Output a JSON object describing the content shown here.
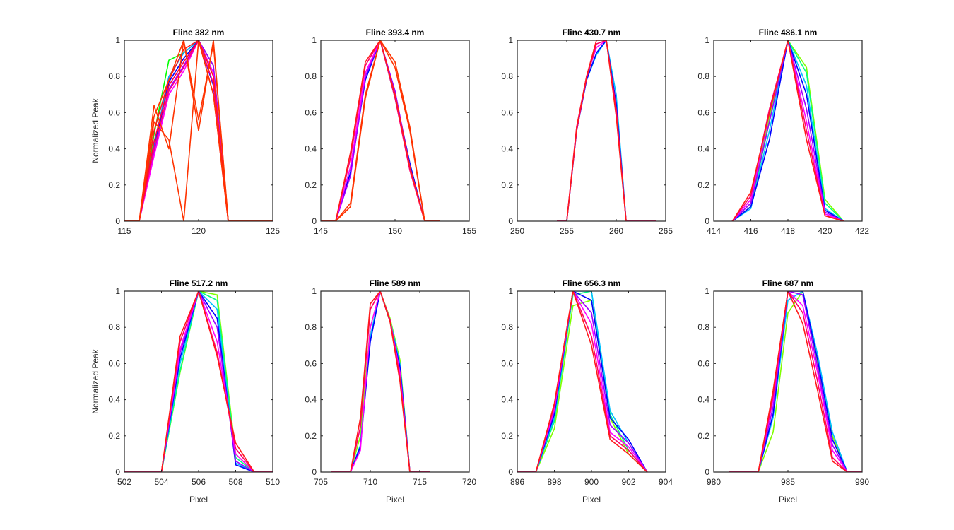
{
  "chart_data": [
    {
      "type": "line",
      "title": "Fline 382 nm",
      "xlabel": "",
      "ylabel": "Normalized Peak",
      "xlim": [
        115,
        125
      ],
      "ylim": [
        0,
        1
      ],
      "xticks": [
        115,
        120,
        125
      ],
      "yticks": [
        0,
        0.2,
        0.4,
        0.6,
        0.8,
        1
      ],
      "x": [
        115,
        116,
        117,
        118,
        119,
        120,
        121,
        122,
        123,
        124,
        125
      ],
      "series": [
        {
          "color": "#00ff00",
          "values": [
            0,
            0,
            0.48,
            0.89,
            0.93,
            1.0,
            0.86,
            0,
            0,
            0,
            0
          ]
        },
        {
          "color": "#00a0ff",
          "values": [
            0,
            0,
            0.42,
            0.8,
            0.93,
            1.0,
            0.82,
            0,
            0,
            0,
            0
          ]
        },
        {
          "color": "#0000ff",
          "values": [
            0,
            0,
            0.4,
            0.77,
            0.9,
            1.0,
            0.75,
            0,
            0,
            0,
            0
          ]
        },
        {
          "color": "#a000ff",
          "values": [
            0,
            0,
            0.38,
            0.73,
            0.86,
            1.0,
            0.86,
            0,
            0,
            0,
            0
          ]
        },
        {
          "color": "#ff00ff",
          "values": [
            0,
            0,
            0.36,
            0.7,
            0.83,
            1.0,
            0.82,
            0,
            0,
            0,
            0
          ]
        },
        {
          "color": "#ff0080",
          "values": [
            0,
            0,
            0.4,
            0.72,
            0.85,
            1.0,
            0.76,
            0,
            0,
            0,
            0
          ]
        },
        {
          "color": "#ff0040",
          "values": [
            0,
            0,
            0.44,
            0.75,
            0.88,
            1.0,
            0.7,
            0,
            0,
            0,
            0
          ]
        },
        {
          "color": "#ff1a1a",
          "values": [
            0,
            0,
            0.5,
            0.78,
            0.95,
            1.0,
            0.8,
            0,
            0,
            0,
            0
          ]
        },
        {
          "color": "#ff3300",
          "values": [
            0,
            0,
            0.64,
            0.4,
            1.0,
            0.5,
            1.0,
            0,
            0,
            0,
            0
          ]
        },
        {
          "color": "#ff3300",
          "values": [
            0,
            0,
            0.55,
            0.45,
            0.0,
            1.0,
            0.7,
            0,
            0,
            0,
            0
          ]
        },
        {
          "color": "#ff3300",
          "values": [
            0,
            0,
            0.58,
            0.78,
            1.0,
            0.56,
            0.98,
            0,
            0,
            0,
            0
          ]
        }
      ]
    },
    {
      "type": "line",
      "title": "Fline 393.4 nm",
      "xlabel": "",
      "ylabel": "",
      "xlim": [
        145,
        155
      ],
      "ylim": [
        0,
        1
      ],
      "xticks": [
        145,
        150,
        155
      ],
      "yticks": [
        0,
        0.2,
        0.4,
        0.6,
        0.8,
        1
      ],
      "x": [
        145,
        146,
        147,
        148,
        149,
        150,
        151,
        152,
        153
      ],
      "series": [
        {
          "color": "#00c0ff",
          "values": [
            0,
            0,
            0.3,
            0.8,
            1.0,
            0.68,
            0.3,
            0,
            0
          ]
        },
        {
          "color": "#0000ff",
          "values": [
            0,
            0,
            0.27,
            0.78,
            1.0,
            0.7,
            0.32,
            0,
            0
          ]
        },
        {
          "color": "#a000ff",
          "values": [
            0,
            0,
            0.25,
            0.8,
            1.0,
            0.72,
            0.3,
            0,
            0
          ]
        },
        {
          "color": "#ff00ff",
          "values": [
            0,
            0,
            0.3,
            0.82,
            1.0,
            0.7,
            0.3,
            0,
            0
          ]
        },
        {
          "color": "#ff0066",
          "values": [
            0,
            0,
            0.35,
            0.86,
            1.0,
            0.68,
            0.28,
            0,
            0
          ]
        },
        {
          "color": "#ff1a1a",
          "values": [
            0,
            0,
            0.38,
            0.88,
            1.0,
            0.7,
            0.3,
            0,
            0
          ]
        },
        {
          "color": "#ff3300",
          "values": [
            0,
            0,
            0.1,
            0.7,
            1.0,
            0.88,
            0.52,
            0,
            0
          ]
        },
        {
          "color": "#ff3300",
          "values": [
            0,
            0,
            0.08,
            0.68,
            1.0,
            0.85,
            0.5,
            0,
            0
          ]
        }
      ]
    },
    {
      "type": "line",
      "title": "Fline 430.7 nm",
      "xlabel": "",
      "ylabel": "",
      "xlim": [
        250,
        265
      ],
      "ylim": [
        0,
        1
      ],
      "xticks": [
        250,
        255,
        260,
        265
      ],
      "yticks": [
        0,
        0.2,
        0.4,
        0.6,
        0.8,
        1
      ],
      "x": [
        254,
        255,
        256,
        257,
        258,
        259,
        260,
        261,
        262,
        263,
        264
      ],
      "series": [
        {
          "color": "#00c0ff",
          "values": [
            0,
            0,
            0.5,
            0.78,
            0.92,
            1.0,
            0.7,
            0,
            0,
            0,
            0
          ]
        },
        {
          "color": "#0000ff",
          "values": [
            0,
            0,
            0.5,
            0.78,
            0.93,
            1.0,
            0.65,
            0,
            0,
            0,
            0
          ]
        },
        {
          "color": "#ff00ff",
          "values": [
            0,
            0,
            0.52,
            0.8,
            0.96,
            1.0,
            0.6,
            0,
            0,
            0,
            0
          ]
        },
        {
          "color": "#ff0066",
          "values": [
            0,
            0,
            0.5,
            0.79,
            0.98,
            1.0,
            0.62,
            0,
            0,
            0,
            0
          ]
        },
        {
          "color": "#ff1a1a",
          "values": [
            0,
            0,
            0.52,
            0.8,
            1.0,
            1.0,
            0.58,
            0,
            0,
            0,
            0
          ]
        }
      ]
    },
    {
      "type": "line",
      "title": "Fline 486.1 nm",
      "xlabel": "",
      "ylabel": "",
      "xlim": [
        414,
        422
      ],
      "ylim": [
        0,
        1
      ],
      "xticks": [
        414,
        416,
        418,
        420,
        422
      ],
      "yticks": [
        0,
        0.2,
        0.4,
        0.6,
        0.8,
        1
      ],
      "x": [
        415,
        416,
        417,
        418,
        419,
        420,
        421
      ],
      "series": [
        {
          "color": "#80ff00",
          "values": [
            0,
            0.1,
            0.58,
            1.0,
            0.85,
            0.12,
            0
          ]
        },
        {
          "color": "#00ff80",
          "values": [
            0,
            0.08,
            0.55,
            1.0,
            0.82,
            0.1,
            0
          ]
        },
        {
          "color": "#00c0ff",
          "values": [
            0,
            0.07,
            0.5,
            1.0,
            0.75,
            0.07,
            0
          ]
        },
        {
          "color": "#0000ff",
          "values": [
            0,
            0.08,
            0.45,
            1.0,
            0.7,
            0.06,
            0
          ]
        },
        {
          "color": "#a000ff",
          "values": [
            0,
            0.1,
            0.55,
            1.0,
            0.62,
            0.05,
            0
          ]
        },
        {
          "color": "#ff00ff",
          "values": [
            0,
            0.12,
            0.6,
            1.0,
            0.55,
            0.04,
            0
          ]
        },
        {
          "color": "#ff0066",
          "values": [
            0,
            0.14,
            0.62,
            1.0,
            0.5,
            0.03,
            0
          ]
        },
        {
          "color": "#ff1a1a",
          "values": [
            0,
            0.16,
            0.6,
            1.0,
            0.45,
            0.03,
            0
          ]
        }
      ]
    },
    {
      "type": "line",
      "title": "Fline 517.2 nm",
      "xlabel": "Pixel",
      "ylabel": "Normalized Peak",
      "xlim": [
        502,
        510
      ],
      "ylim": [
        0,
        1
      ],
      "xticks": [
        502,
        504,
        506,
        508,
        510
      ],
      "yticks": [
        0,
        0.2,
        0.4,
        0.6,
        0.8,
        1
      ],
      "x": [
        502,
        503,
        504,
        505,
        506,
        507,
        508,
        509,
        510
      ],
      "series": [
        {
          "color": "#80ff00",
          "values": [
            0,
            0,
            0,
            0.55,
            1.0,
            0.98,
            0.1,
            0,
            0
          ]
        },
        {
          "color": "#00ff80",
          "values": [
            0,
            0,
            0,
            0.56,
            1.0,
            0.95,
            0.08,
            0,
            0
          ]
        },
        {
          "color": "#00c0ff",
          "values": [
            0,
            0,
            0,
            0.6,
            1.0,
            0.9,
            0.05,
            0,
            0
          ]
        },
        {
          "color": "#0000ff",
          "values": [
            0,
            0,
            0,
            0.63,
            1.0,
            0.85,
            0.04,
            0,
            0
          ]
        },
        {
          "color": "#a000ff",
          "values": [
            0,
            0,
            0,
            0.66,
            1.0,
            0.8,
            0.06,
            0,
            0
          ]
        },
        {
          "color": "#ff00ff",
          "values": [
            0,
            0,
            0,
            0.68,
            1.0,
            0.72,
            0.1,
            0,
            0
          ]
        },
        {
          "color": "#ff0066",
          "values": [
            0,
            0,
            0,
            0.72,
            1.0,
            0.66,
            0.13,
            0,
            0
          ]
        },
        {
          "color": "#ff1a1a",
          "values": [
            0,
            0,
            0,
            0.75,
            1.0,
            0.64,
            0.16,
            0,
            0
          ]
        }
      ]
    },
    {
      "type": "line",
      "title": "Fline 589 nm",
      "xlabel": "Pixel",
      "ylabel": "",
      "xlim": [
        705,
        720
      ],
      "ylim": [
        0,
        1
      ],
      "xticks": [
        705,
        710,
        715,
        720
      ],
      "yticks": [
        0,
        0.2,
        0.4,
        0.6,
        0.8,
        1
      ],
      "x": [
        706,
        707,
        708,
        709,
        710,
        711,
        712,
        713,
        714,
        715,
        716
      ],
      "series": [
        {
          "color": "#80ff00",
          "values": [
            0,
            0,
            0,
            0.2,
            0.8,
            1.0,
            0.85,
            0.62,
            0,
            0,
            0
          ]
        },
        {
          "color": "#00c0ff",
          "values": [
            0,
            0,
            0,
            0.15,
            0.75,
            1.0,
            0.84,
            0.6,
            0,
            0,
            0
          ]
        },
        {
          "color": "#0000ff",
          "values": [
            0,
            0,
            0,
            0.14,
            0.72,
            1.0,
            0.83,
            0.58,
            0,
            0,
            0
          ]
        },
        {
          "color": "#ff00ff",
          "values": [
            0,
            0,
            0,
            0.12,
            0.8,
            1.0,
            0.84,
            0.55,
            0,
            0,
            0
          ]
        },
        {
          "color": "#ff0066",
          "values": [
            0,
            0,
            0,
            0.25,
            0.9,
            1.0,
            0.84,
            0.52,
            0,
            0,
            0
          ]
        },
        {
          "color": "#ff1a1a",
          "values": [
            0,
            0,
            0,
            0.3,
            0.93,
            1.0,
            0.83,
            0.5,
            0,
            0,
            0
          ]
        }
      ]
    },
    {
      "type": "line",
      "title": "Fline 656.3 nm",
      "xlabel": "Pixel",
      "ylabel": "",
      "xlim": [
        896,
        904
      ],
      "ylim": [
        0,
        1
      ],
      "xticks": [
        896,
        898,
        900,
        902,
        904
      ],
      "yticks": [
        0,
        0.2,
        0.4,
        0.6,
        0.8,
        1
      ],
      "x": [
        896,
        897,
        898,
        899,
        900,
        901,
        902,
        903
      ],
      "series": [
        {
          "color": "#80ff00",
          "values": [
            0,
            0,
            0.24,
            0.92,
            0.95,
            0.3,
            0.1,
            0
          ]
        },
        {
          "color": "#00ff80",
          "values": [
            0,
            0,
            0.28,
            0.98,
            1.0,
            0.32,
            0.12,
            0
          ]
        },
        {
          "color": "#00c0ff",
          "values": [
            0,
            0,
            0.3,
            1.0,
            1.0,
            0.34,
            0.16,
            0
          ]
        },
        {
          "color": "#0000ff",
          "values": [
            0,
            0,
            0.32,
            1.0,
            0.95,
            0.3,
            0.18,
            0
          ]
        },
        {
          "color": "#a000ff",
          "values": [
            0,
            0,
            0.34,
            1.0,
            0.88,
            0.26,
            0.16,
            0
          ]
        },
        {
          "color": "#ff00ff",
          "values": [
            0,
            0,
            0.35,
            1.0,
            0.82,
            0.22,
            0.14,
            0
          ]
        },
        {
          "color": "#ff0066",
          "values": [
            0,
            0,
            0.37,
            1.0,
            0.75,
            0.2,
            0.12,
            0
          ]
        },
        {
          "color": "#ff1a1a",
          "values": [
            0,
            0,
            0.38,
            1.0,
            0.7,
            0.18,
            0.1,
            0
          ]
        }
      ]
    },
    {
      "type": "line",
      "title": "Fline 687 nm",
      "xlabel": "Pixel",
      "ylabel": "",
      "xlim": [
        980,
        990
      ],
      "ylim": [
        0,
        1
      ],
      "xticks": [
        980,
        985,
        990
      ],
      "yticks": [
        0,
        0.2,
        0.4,
        0.6,
        0.8,
        1
      ],
      "x": [
        981,
        982,
        983,
        984,
        985,
        986,
        987,
        988,
        989,
        990
      ],
      "series": [
        {
          "color": "#80ff00",
          "values": [
            0,
            0,
            0,
            0.22,
            0.88,
            1.0,
            0.6,
            0.2,
            0,
            0
          ]
        },
        {
          "color": "#00c0ff",
          "values": [
            0,
            0,
            0,
            0.3,
            0.95,
            1.0,
            0.65,
            0.22,
            0,
            0
          ]
        },
        {
          "color": "#0000ff",
          "values": [
            0,
            0,
            0,
            0.32,
            1.0,
            1.0,
            0.62,
            0.18,
            0,
            0
          ]
        },
        {
          "color": "#a000ff",
          "values": [
            0,
            0,
            0,
            0.36,
            1.0,
            0.98,
            0.58,
            0.15,
            0,
            0
          ]
        },
        {
          "color": "#ff00ff",
          "values": [
            0,
            0,
            0,
            0.4,
            1.0,
            0.92,
            0.55,
            0.12,
            0,
            0
          ]
        },
        {
          "color": "#ff0066",
          "values": [
            0,
            0,
            0,
            0.42,
            1.0,
            0.88,
            0.5,
            0.08,
            0,
            0
          ]
        },
        {
          "color": "#ff1a1a",
          "values": [
            0,
            0,
            0,
            0.45,
            1.0,
            0.82,
            0.45,
            0.06,
            0,
            0
          ]
        }
      ]
    }
  ]
}
